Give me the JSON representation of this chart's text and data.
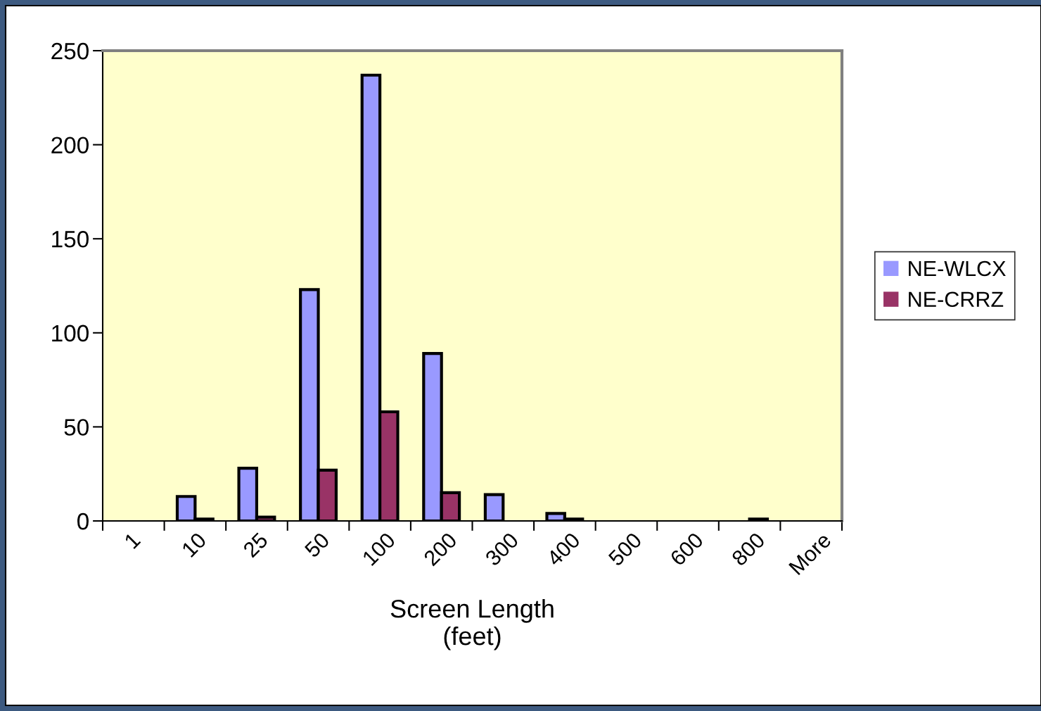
{
  "chart_data": {
    "type": "bar",
    "xlabel": "Screen Length\n(feet)",
    "categories": [
      "1",
      "10",
      "25",
      "50",
      "100",
      "200",
      "300",
      "400",
      "500",
      "600",
      "800",
      "More"
    ],
    "series": [
      {
        "name": "NE-WLCX",
        "color": "#9999ff",
        "values": [
          0,
          13,
          28,
          123,
          237,
          89,
          14,
          4,
          0,
          0,
          0,
          0
        ]
      },
      {
        "name": "NE-CRRZ",
        "color": "#993366",
        "values": [
          0,
          1,
          2,
          27,
          58,
          15,
          0,
          1,
          0,
          0,
          1,
          0
        ]
      }
    ],
    "ylim": [
      0,
      250
    ],
    "yticks": [
      0,
      50,
      100,
      150,
      200,
      250
    ],
    "grid": false,
    "legend": "right"
  }
}
